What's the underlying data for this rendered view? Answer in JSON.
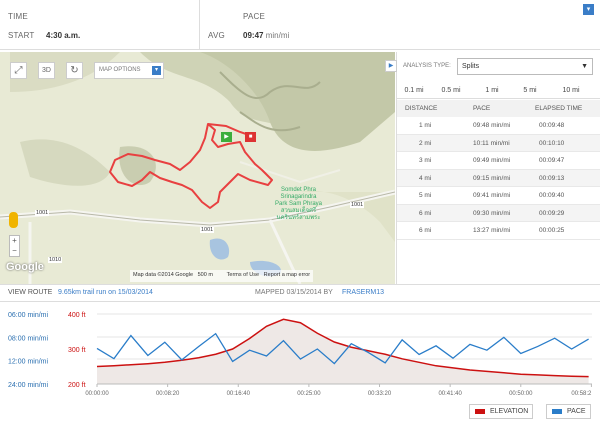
{
  "top": {
    "time_label": "TIME",
    "start_label": "START",
    "start_value": "4:30 a.m.",
    "pace_label": "PACE",
    "avg_label": "AVG",
    "avg_value": "09:47",
    "avg_unit": "min/mi"
  },
  "map": {
    "options_label": "MAP OPTIONS",
    "place_label_1": "Somdet Phra",
    "place_label_2": "Srinagarindra",
    "place_label_3": "Park Sam Phraya",
    "place_label_4": "สวนสมเด็จศรี",
    "place_label_5": "นครินทร์สามพระ",
    "road_1": "1001",
    "road_2": "1001",
    "road_3": "1001",
    "road_4": "1010",
    "footer": "Map data ©2014 Google",
    "scale": "500 m",
    "terms": "Terms of Use",
    "report": "Report a map error",
    "google": "Google"
  },
  "analysis": {
    "type_label": "ANALYSIS TYPE:",
    "type_value": "Splits",
    "tabs": [
      "0.1 mi",
      "0.5 mi",
      "1 mi",
      "5 mi",
      "10 mi"
    ],
    "headers": [
      "DISTANCE",
      "PACE",
      "ELAPSED TIME"
    ],
    "rows": [
      [
        "1 mi",
        "09:48 min/mi",
        "00:09:48"
      ],
      [
        "2 mi",
        "10:11 min/mi",
        "00:10:10"
      ],
      [
        "3 mi",
        "09:49 min/mi",
        "00:09:47"
      ],
      [
        "4 mi",
        "09:15 min/mi",
        "00:09:13"
      ],
      [
        "5 mi",
        "09:41 min/mi",
        "00:09:40"
      ],
      [
        "6 mi",
        "09:30 min/mi",
        "00:09:29"
      ],
      [
        "6 mi",
        "13:27 min/mi",
        "00:00:25"
      ]
    ]
  },
  "route": {
    "view_label": "VIEW ROUTE",
    "route_name": "9.65km trail run on 15/03/2014",
    "mapped_label": "MAPPED 03/15/2014 BY",
    "user": "FRASERM13"
  },
  "chart_data": {
    "type": "line",
    "x_ticks": [
      "00:00:00",
      "00:08:20",
      "00:16:40",
      "00:25:00",
      "00:33:20",
      "00:41:40",
      "00:50:00",
      "00:58:2"
    ],
    "pace_ticks": [
      "06:00 min/mi",
      "08:00 min/mi",
      "12:00 min/mi",
      "24:00 min/mi"
    ],
    "elev_ticks": [
      "400 ft",
      "300 ft",
      "200 ft"
    ],
    "x_minutes": [
      0,
      2,
      4,
      6,
      8,
      10,
      12,
      14,
      16,
      18,
      20,
      22,
      24,
      26,
      28,
      30,
      32,
      34,
      36,
      38,
      40,
      42,
      44,
      46,
      48,
      50,
      52,
      54,
      56,
      58
    ],
    "series": [
      {
        "name": "ELEVATION",
        "color": "#cc1111",
        "values": [
          250,
          252,
          255,
          258,
          262,
          268,
          275,
          285,
          300,
          330,
          365,
          385,
          375,
          345,
          320,
          305,
          295,
          285,
          272,
          262,
          252,
          246,
          240,
          236,
          232,
          228,
          226,
          224,
          222,
          221
        ]
      },
      {
        "name": "PACE",
        "color": "#2a7dc9",
        "values": [
          9.5,
          11.5,
          7.8,
          10.8,
          8.6,
          11.8,
          9.2,
          7.6,
          12.2,
          9.8,
          10.9,
          8.4,
          11.6,
          9.6,
          12.8,
          8.8,
          10.2,
          12.6,
          8.3,
          10.6,
          9.1,
          11.4,
          8.9,
          9.8,
          8.0,
          10.4,
          9.2,
          8.1,
          9.6,
          8.2
        ]
      }
    ]
  },
  "legend": {
    "elevation": "ELEVATION",
    "pace": "PACE"
  }
}
